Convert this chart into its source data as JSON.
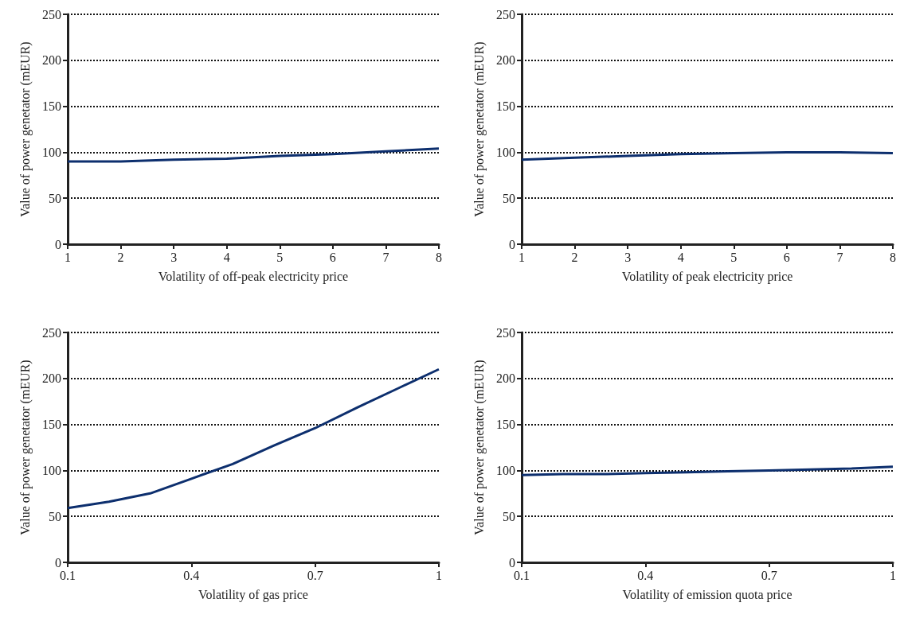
{
  "chart_data": [
    {
      "type": "line",
      "xlabel": "Volatility of off-peak electricity price",
      "ylabel": "Value of power genetator (mEUR)",
      "x": [
        1,
        2,
        3,
        4,
        5,
        6,
        7,
        8
      ],
      "series": [
        {
          "color": "#0d2f6e",
          "values": [
            90,
            90,
            92,
            93,
            96,
            98,
            101,
            104
          ]
        }
      ],
      "xlim": [
        1,
        8
      ],
      "xticks": [
        1,
        2,
        3,
        4,
        5,
        6,
        7,
        8
      ],
      "ylim": [
        0,
        250
      ],
      "yticks": [
        0,
        50,
        100,
        150,
        200,
        250
      ],
      "grid": "y"
    },
    {
      "type": "line",
      "xlabel": "Volatility of peak electricity price",
      "ylabel": "Value of power genetator (mEUR)",
      "x": [
        1,
        2,
        3,
        4,
        5,
        6,
        7,
        8
      ],
      "series": [
        {
          "color": "#0d2f6e",
          "values": [
            92,
            94,
            96,
            98,
            99,
            100,
            100,
            99
          ]
        }
      ],
      "xlim": [
        1,
        8
      ],
      "xticks": [
        1,
        2,
        3,
        4,
        5,
        6,
        7,
        8
      ],
      "ylim": [
        0,
        250
      ],
      "yticks": [
        0,
        50,
        100,
        150,
        200,
        250
      ],
      "grid": "y"
    },
    {
      "type": "line",
      "xlabel": "Volatility of gas price",
      "ylabel": "Value of power genetator (mEUR)",
      "x": [
        0.1,
        0.2,
        0.3,
        0.4,
        0.5,
        0.6,
        0.7,
        0.8,
        0.9,
        1
      ],
      "series": [
        {
          "color": "#0d2f6e",
          "values": [
            59,
            66,
            75,
            91,
            107,
            127,
            146,
            168,
            189,
            210
          ]
        }
      ],
      "xlim": [
        0.1,
        1
      ],
      "xticks": [
        0.1,
        0.4,
        0.7,
        1
      ],
      "ylim": [
        0,
        250
      ],
      "yticks": [
        0,
        50,
        100,
        150,
        200,
        250
      ],
      "grid": "y"
    },
    {
      "type": "line",
      "xlabel": "Volatility of emission quota price",
      "ylabel": "Value of power genetator (mEUR)",
      "x": [
        0.1,
        0.2,
        0.3,
        0.4,
        0.5,
        0.6,
        0.7,
        0.8,
        0.9,
        1
      ],
      "series": [
        {
          "color": "#0d2f6e",
          "values": [
            95,
            96,
            96,
            97,
            98,
            99,
            100,
            101,
            102,
            104
          ]
        }
      ],
      "xlim": [
        0.1,
        1
      ],
      "xticks": [
        0.1,
        0.4,
        0.7,
        1
      ],
      "ylim": [
        0,
        250
      ],
      "yticks": [
        0,
        50,
        100,
        150,
        200,
        250
      ],
      "grid": "y"
    }
  ]
}
